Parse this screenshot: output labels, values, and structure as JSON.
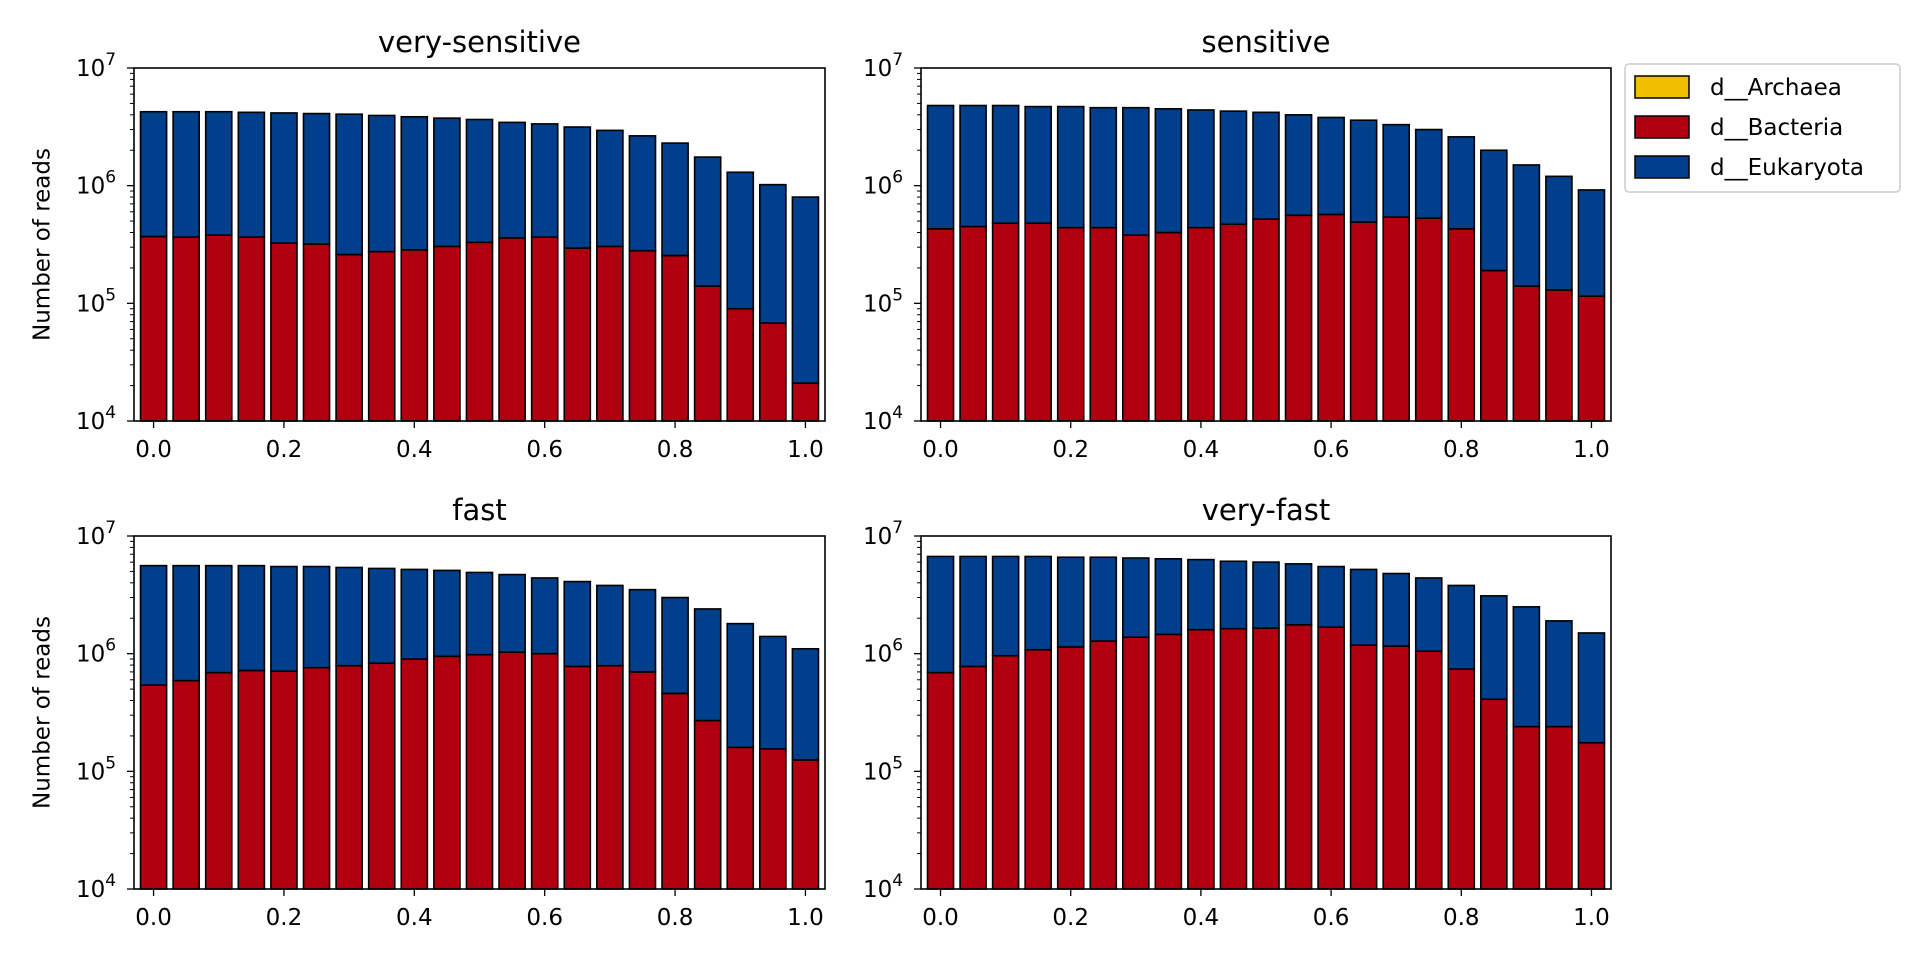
{
  "colors": {
    "d__Archaea": "#F0C000",
    "d__Bacteria": "#B0000F",
    "d__Eukaryota": "#003F8C"
  },
  "legend": {
    "placement": "right",
    "entries": [
      "d__Archaea",
      "d__Bacteria",
      "d__Eukaryota"
    ]
  },
  "chart_data": [
    {
      "type": "bar",
      "stacked": true,
      "title": "very-sensitive",
      "ylabel": "Number of reads",
      "xlabel": "",
      "yscale": "log",
      "ylim": [
        10000,
        10000000
      ],
      "xlim": [
        -0.03,
        1.03
      ],
      "xticks": [
        "0.0",
        "0.2",
        "0.4",
        "0.6",
        "0.8",
        "1.0"
      ],
      "yticks": [
        {
          "base": "10",
          "exp": "4"
        },
        {
          "base": "10",
          "exp": "5"
        },
        {
          "base": "10",
          "exp": "6"
        },
        {
          "base": "10",
          "exp": "7"
        }
      ],
      "x": [
        0.0,
        0.05,
        0.1,
        0.15,
        0.2,
        0.25,
        0.3,
        0.35,
        0.4,
        0.45,
        0.5,
        0.55,
        0.6,
        0.65,
        0.7,
        0.75,
        0.8,
        0.85,
        0.9,
        0.95,
        1.0
      ],
      "series": [
        {
          "name": "d__Archaea",
          "values": [
            0,
            0,
            0,
            0,
            0,
            0,
            0,
            0,
            0,
            0,
            0,
            0,
            0,
            0,
            0,
            0,
            0,
            0,
            0,
            0,
            0
          ]
        },
        {
          "name": "d__Bacteria",
          "values": [
            370000,
            365000,
            380000,
            365000,
            325000,
            320000,
            260000,
            275000,
            285000,
            305000,
            330000,
            360000,
            365000,
            295000,
            305000,
            280000,
            255000,
            140000,
            90000,
            68000,
            21000
          ]
        },
        {
          "name": "d__Eukaryota",
          "values": [
            3880000,
            3885000,
            3870000,
            3835000,
            3825000,
            3780000,
            3790000,
            3675000,
            3565000,
            3445000,
            3320000,
            3090000,
            2985000,
            2855000,
            2645000,
            2370000,
            2045000,
            1610000,
            1210000,
            952000,
            779000
          ]
        }
      ]
    },
    {
      "type": "bar",
      "stacked": true,
      "title": "sensitive",
      "ylabel": "",
      "xlabel": "",
      "yscale": "log",
      "ylim": [
        10000,
        10000000
      ],
      "xlim": [
        -0.03,
        1.03
      ],
      "xticks": [
        "0.0",
        "0.2",
        "0.4",
        "0.6",
        "0.8",
        "1.0"
      ],
      "yticks": [
        {
          "base": "10",
          "exp": "4"
        },
        {
          "base": "10",
          "exp": "5"
        },
        {
          "base": "10",
          "exp": "6"
        },
        {
          "base": "10",
          "exp": "7"
        }
      ],
      "x": [
        0.0,
        0.05,
        0.1,
        0.15,
        0.2,
        0.25,
        0.3,
        0.35,
        0.4,
        0.45,
        0.5,
        0.55,
        0.6,
        0.65,
        0.7,
        0.75,
        0.8,
        0.85,
        0.9,
        0.95,
        1.0
      ],
      "series": [
        {
          "name": "d__Archaea",
          "values": [
            0,
            0,
            0,
            0,
            0,
            0,
            0,
            0,
            0,
            0,
            0,
            0,
            0,
            0,
            0,
            0,
            0,
            0,
            0,
            0,
            0
          ]
        },
        {
          "name": "d__Bacteria",
          "values": [
            430000,
            450000,
            480000,
            480000,
            440000,
            440000,
            380000,
            400000,
            440000,
            470000,
            520000,
            560000,
            570000,
            490000,
            540000,
            530000,
            430000,
            190000,
            140000,
            130000,
            115000
          ]
        },
        {
          "name": "d__Eukaryota",
          "values": [
            4370000,
            4350000,
            4320000,
            4220000,
            4260000,
            4160000,
            4220000,
            4100000,
            3960000,
            3830000,
            3680000,
            3440000,
            3230000,
            3110000,
            2760000,
            2470000,
            2170000,
            1810000,
            1360000,
            1070000,
            805000
          ]
        }
      ]
    },
    {
      "type": "bar",
      "stacked": true,
      "title": "fast",
      "ylabel": "Number of reads",
      "xlabel": "",
      "yscale": "log",
      "ylim": [
        10000,
        10000000
      ],
      "xlim": [
        -0.03,
        1.03
      ],
      "xticks": [
        "0.0",
        "0.2",
        "0.4",
        "0.6",
        "0.8",
        "1.0"
      ],
      "yticks": [
        {
          "base": "10",
          "exp": "4"
        },
        {
          "base": "10",
          "exp": "5"
        },
        {
          "base": "10",
          "exp": "6"
        },
        {
          "base": "10",
          "exp": "7"
        }
      ],
      "x": [
        0.0,
        0.05,
        0.1,
        0.15,
        0.2,
        0.25,
        0.3,
        0.35,
        0.4,
        0.45,
        0.5,
        0.55,
        0.6,
        0.65,
        0.7,
        0.75,
        0.8,
        0.85,
        0.9,
        0.95,
        1.0
      ],
      "series": [
        {
          "name": "d__Archaea",
          "values": [
            0,
            0,
            0,
            0,
            0,
            0,
            0,
            0,
            0,
            0,
            0,
            0,
            0,
            0,
            0,
            0,
            0,
            0,
            0,
            0,
            0
          ]
        },
        {
          "name": "d__Bacteria",
          "values": [
            540000,
            590000,
            690000,
            720000,
            710000,
            760000,
            790000,
            830000,
            900000,
            950000,
            980000,
            1030000,
            1000000,
            780000,
            790000,
            700000,
            460000,
            270000,
            160000,
            155000,
            125000
          ]
        },
        {
          "name": "d__Eukaryota",
          "values": [
            5060000,
            5010000,
            4910000,
            4880000,
            4790000,
            4740000,
            4610000,
            4470000,
            4300000,
            4150000,
            3920000,
            3670000,
            3400000,
            3320000,
            3010000,
            2800000,
            2540000,
            2130000,
            1640000,
            1245000,
            975000
          ]
        }
      ]
    },
    {
      "type": "bar",
      "stacked": true,
      "title": "very-fast",
      "ylabel": "",
      "xlabel": "",
      "yscale": "log",
      "ylim": [
        10000,
        10000000
      ],
      "xlim": [
        -0.03,
        1.03
      ],
      "xticks": [
        "0.0",
        "0.2",
        "0.4",
        "0.6",
        "0.8",
        "1.0"
      ],
      "yticks": [
        {
          "base": "10",
          "exp": "4"
        },
        {
          "base": "10",
          "exp": "5"
        },
        {
          "base": "10",
          "exp": "6"
        },
        {
          "base": "10",
          "exp": "7"
        }
      ],
      "x": [
        0.0,
        0.05,
        0.1,
        0.15,
        0.2,
        0.25,
        0.3,
        0.35,
        0.4,
        0.45,
        0.5,
        0.55,
        0.6,
        0.65,
        0.7,
        0.75,
        0.8,
        0.85,
        0.9,
        0.95,
        1.0
      ],
      "series": [
        {
          "name": "d__Archaea",
          "values": [
            0,
            0,
            0,
            0,
            0,
            0,
            0,
            0,
            0,
            0,
            0,
            0,
            0,
            0,
            0,
            0,
            0,
            0,
            0,
            0,
            0
          ]
        },
        {
          "name": "d__Bacteria",
          "values": [
            690000,
            780000,
            960000,
            1080000,
            1140000,
            1280000,
            1380000,
            1460000,
            1600000,
            1630000,
            1650000,
            1760000,
            1680000,
            1180000,
            1160000,
            1050000,
            740000,
            410000,
            240000,
            240000,
            175000
          ]
        },
        {
          "name": "d__Eukaryota",
          "values": [
            6010000,
            5920000,
            5740000,
            5620000,
            5460000,
            5320000,
            5120000,
            4940000,
            4700000,
            4470000,
            4350000,
            4040000,
            3820000,
            4020000,
            3640000,
            3350000,
            3060000,
            2690000,
            2260000,
            1660000,
            1325000
          ]
        }
      ]
    }
  ]
}
